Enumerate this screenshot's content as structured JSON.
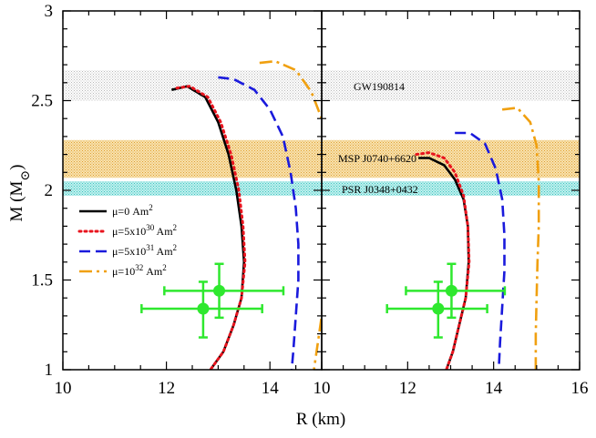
{
  "chart_data": {
    "type": "line",
    "xlabel": "R (km)",
    "ylabel": "M (M⊙)",
    "ylim": [
      1,
      3
    ],
    "y_ticks": [
      "1",
      "1.5",
      "2",
      "2.5",
      "3"
    ],
    "panels": [
      {
        "name": "left",
        "xlim": [
          10,
          15
        ],
        "x_ticks": [
          "10",
          "12",
          "14"
        ],
        "series": [
          {
            "name": "μ=0 Am²",
            "color": "#000000",
            "dash": "solid",
            "points": [
              [
                12.1,
                2.56
              ],
              [
                12.4,
                2.58
              ],
              [
                12.75,
                2.52
              ],
              [
                13.0,
                2.38
              ],
              [
                13.2,
                2.2
              ],
              [
                13.35,
                2.0
              ],
              [
                13.45,
                1.8
              ],
              [
                13.5,
                1.6
              ],
              [
                13.45,
                1.4
              ],
              [
                13.3,
                1.25
              ],
              [
                13.1,
                1.1
              ],
              [
                12.85,
                1.0
              ]
            ]
          },
          {
            "name": "μ=5x10³⁰ Am²",
            "color": "#e8141e",
            "dash": "dotted",
            "points": [
              [
                12.2,
                2.57
              ],
              [
                12.45,
                2.58
              ],
              [
                12.8,
                2.52
              ],
              [
                13.05,
                2.38
              ],
              [
                13.25,
                2.2
              ],
              [
                13.4,
                2.0
              ],
              [
                13.48,
                1.8
              ],
              [
                13.52,
                1.6
              ],
              [
                13.45,
                1.4
              ],
              [
                13.3,
                1.25
              ],
              [
                13.1,
                1.1
              ],
              [
                12.85,
                1.0
              ]
            ]
          },
          {
            "name": "μ=5x10³¹ Am²",
            "color": "#1a1adc",
            "dash": "dashed",
            "points": [
              [
                13.0,
                2.63
              ],
              [
                13.3,
                2.62
              ],
              [
                13.7,
                2.56
              ],
              [
                14.0,
                2.45
              ],
              [
                14.25,
                2.3
              ],
              [
                14.4,
                2.1
              ],
              [
                14.5,
                1.9
              ],
              [
                14.55,
                1.7
              ],
              [
                14.55,
                1.5
              ],
              [
                14.5,
                1.3
              ],
              [
                14.45,
                1.1
              ],
              [
                14.42,
                1.0
              ]
            ]
          },
          {
            "name": "μ=10³² Am²",
            "color": "#f0a010",
            "dash": "dashdot",
            "points": [
              [
                13.8,
                2.71
              ],
              [
                14.1,
                2.72
              ],
              [
                14.5,
                2.67
              ],
              [
                14.8,
                2.55
              ],
              [
                15.0,
                2.4
              ],
              [
                15.1,
                2.2
              ],
              [
                15.18,
                2.0
              ],
              [
                15.2,
                1.8
              ],
              [
                15.15,
                1.6
              ],
              [
                15.05,
                1.4
              ],
              [
                14.95,
                1.2
              ],
              [
                14.85,
                1.0
              ]
            ]
          }
        ]
      },
      {
        "name": "right",
        "xlim": [
          10,
          16
        ],
        "x_ticks": [
          "10",
          "12",
          "14",
          "16"
        ],
        "series": [
          {
            "name": "μ=0 Am²",
            "color": "#000000",
            "dash": "solid",
            "points": [
              [
                12.25,
                2.18
              ],
              [
                12.5,
                2.18
              ],
              [
                12.85,
                2.14
              ],
              [
                13.1,
                2.06
              ],
              [
                13.3,
                1.95
              ],
              [
                13.4,
                1.8
              ],
              [
                13.42,
                1.6
              ],
              [
                13.35,
                1.4
              ],
              [
                13.2,
                1.25
              ],
              [
                13.05,
                1.1
              ],
              [
                12.9,
                1.0
              ]
            ]
          },
          {
            "name": "μ=5x10³⁰ Am²",
            "color": "#e8141e",
            "dash": "dotted",
            "points": [
              [
                12.2,
                2.2
              ],
              [
                12.5,
                2.21
              ],
              [
                12.85,
                2.18
              ],
              [
                13.1,
                2.1
              ],
              [
                13.3,
                1.97
              ],
              [
                13.4,
                1.8
              ],
              [
                13.43,
                1.6
              ],
              [
                13.35,
                1.4
              ],
              [
                13.2,
                1.25
              ],
              [
                13.05,
                1.1
              ],
              [
                12.9,
                1.0
              ]
            ]
          },
          {
            "name": "μ=5x10³¹ Am²",
            "color": "#1a1adc",
            "dash": "dashed",
            "points": [
              [
                13.1,
                2.32
              ],
              [
                13.45,
                2.32
              ],
              [
                13.8,
                2.26
              ],
              [
                14.05,
                2.12
              ],
              [
                14.2,
                1.95
              ],
              [
                14.25,
                1.75
              ],
              [
                14.25,
                1.55
              ],
              [
                14.2,
                1.35
              ],
              [
                14.15,
                1.15
              ],
              [
                14.12,
                1.0
              ]
            ]
          },
          {
            "name": "μ=10³² Am²",
            "color": "#f0a010",
            "dash": "dashdot",
            "points": [
              [
                14.2,
                2.45
              ],
              [
                14.55,
                2.46
              ],
              [
                14.85,
                2.38
              ],
              [
                15.0,
                2.25
              ],
              [
                15.05,
                2.05
              ],
              [
                15.05,
                1.8
              ],
              [
                15.02,
                1.6
              ],
              [
                15.0,
                1.4
              ],
              [
                14.98,
                1.2
              ],
              [
                14.98,
                1.0
              ]
            ]
          }
        ]
      }
    ],
    "bands": [
      {
        "label": "GW190814",
        "ymin": 2.5,
        "ymax": 2.67,
        "color": "#cfcfcf"
      },
      {
        "label": "MSP J0740+6620",
        "ymin": 2.07,
        "ymax": 2.28,
        "color": "#e6a020"
      },
      {
        "label": "PSR J0348+0432",
        "ymin": 1.97,
        "ymax": 2.05,
        "color": "#3cc8c8"
      }
    ],
    "error_points": {
      "color": "#2ee82e",
      "points": [
        {
          "x": 12.71,
          "y": 1.34,
          "x_lo": 11.52,
          "x_hi": 13.85,
          "y_lo": 1.18,
          "y_hi": 1.49
        },
        {
          "x": 13.02,
          "y": 1.44,
          "x_lo": 11.96,
          "x_hi": 14.26,
          "y_lo": 1.29,
          "y_hi": 1.59
        }
      ]
    },
    "legend": {
      "placement": "left-middle",
      "entries": [
        {
          "text": "μ=0 Am",
          "sup": "2"
        },
        {
          "text": "μ=5x10",
          "sup1": "30",
          "text2": " Am",
          "sup": "2"
        },
        {
          "text": "μ=5x10",
          "sup1": "31",
          "text2": " Am",
          "sup": "2"
        },
        {
          "text": "μ=10",
          "sup1": "32",
          "text2": " Am",
          "sup": "2"
        }
      ]
    }
  }
}
